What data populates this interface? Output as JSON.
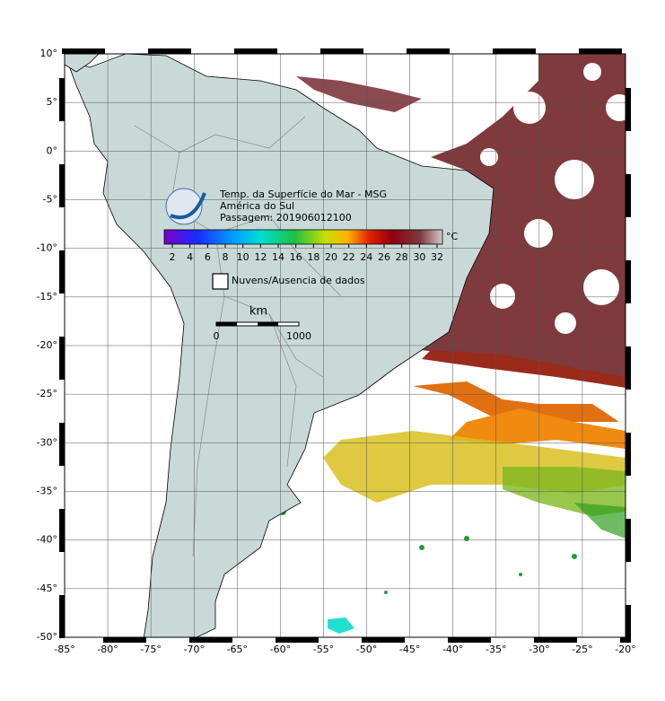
{
  "map": {
    "title_lines": [
      "Temp. da Superfície do Mar - MSG",
      "América do Sul",
      "Passagem: 201906012100"
    ],
    "colorbar": {
      "ticks": [
        2,
        4,
        6,
        8,
        10,
        12,
        14,
        16,
        18,
        20,
        22,
        24,
        26,
        28,
        30,
        32
      ],
      "unit": "°C"
    },
    "legend_nodata": "Nuvens/Ausencia de dados",
    "scale_bar": {
      "unit": "km",
      "start": "0",
      "end": "1000"
    },
    "lon_ticks": [
      {
        "value": -85,
        "label": "-85°"
      },
      {
        "value": -80,
        "label": "-80°"
      },
      {
        "value": -75,
        "label": "-75°"
      },
      {
        "value": -70,
        "label": "-70°"
      },
      {
        "value": -65,
        "label": "-65°"
      },
      {
        "value": -60,
        "label": "-60°"
      },
      {
        "value": -55,
        "label": "-55°"
      },
      {
        "value": -50,
        "label": "-50°"
      },
      {
        "value": -45,
        "label": "-45°"
      },
      {
        "value": -40,
        "label": "-40°"
      },
      {
        "value": -35,
        "label": "-35°"
      },
      {
        "value": -30,
        "label": "-30°"
      },
      {
        "value": -25,
        "label": "-25°"
      },
      {
        "value": -20,
        "label": "-20°"
      }
    ],
    "lat_ticks": [
      {
        "value": 10,
        "label": "10°"
      },
      {
        "value": 5,
        "label": "5°"
      },
      {
        "value": 0,
        "label": "0°"
      },
      {
        "value": -5,
        "label": "-5°"
      },
      {
        "value": -10,
        "label": "-10°"
      },
      {
        "value": -15,
        "label": "-15°"
      },
      {
        "value": -20,
        "label": "-20°"
      },
      {
        "value": -25,
        "label": "-25°"
      },
      {
        "value": -30,
        "label": "-30°"
      },
      {
        "value": -35,
        "label": "-35°"
      },
      {
        "value": -40,
        "label": "-40°"
      },
      {
        "value": -45,
        "label": "-45°"
      },
      {
        "value": -50,
        "label": "-50°"
      }
    ]
  }
}
